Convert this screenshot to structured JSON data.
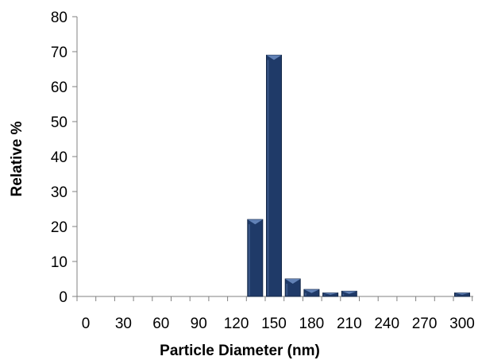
{
  "chart_data": {
    "type": "bar",
    "title": "",
    "xlabel": "Particle Diameter (nm)",
    "ylabel": "Relative %",
    "ylim": [
      0,
      80
    ],
    "yticks": [
      0,
      10,
      20,
      30,
      40,
      50,
      60,
      70,
      80
    ],
    "xticks": [
      0,
      30,
      60,
      90,
      120,
      150,
      180,
      210,
      240,
      270,
      300
    ],
    "grid": false,
    "legend": "none",
    "bar_color": "#1f3a68",
    "bar_highlight": "#6f8fc4",
    "bars": [
      {
        "x": 135,
        "value": 22
      },
      {
        "x": 150,
        "value": 69
      },
      {
        "x": 165,
        "value": 5
      },
      {
        "x": 180,
        "value": 2
      },
      {
        "x": 195,
        "value": 1
      },
      {
        "x": 210,
        "value": 1.5
      },
      {
        "x": 300,
        "value": 1
      }
    ]
  }
}
